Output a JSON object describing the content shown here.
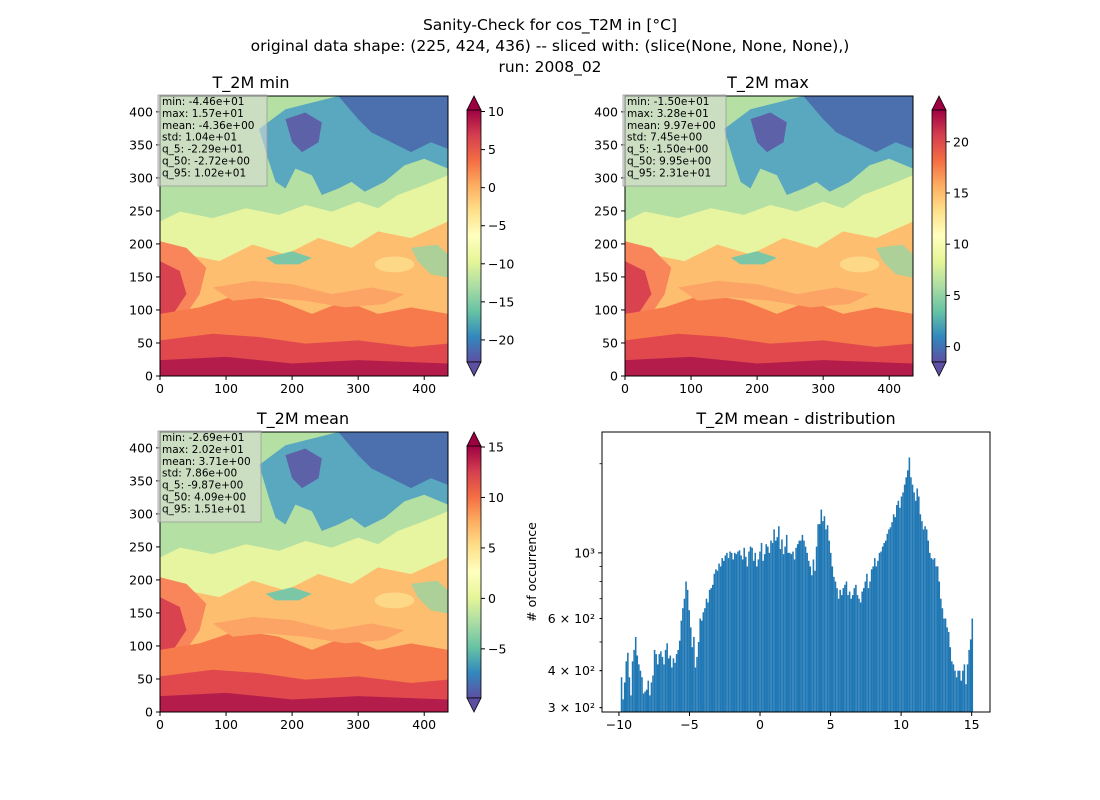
{
  "figure": {
    "suptitle": [
      "Sanity-Check for cos_T2M in [°C]",
      "original data shape: (225, 424, 436) -- sliced with: (slice(None, None, None),)",
      "run: 2008_02"
    ]
  },
  "chart_data": [
    {
      "type": "heatmap",
      "title": "T_2M min",
      "colormap": "Spectral_r",
      "x_ticks": [
        0,
        100,
        200,
        300,
        400
      ],
      "y_ticks": [
        0,
        50,
        100,
        150,
        200,
        250,
        300,
        350,
        400
      ],
      "xlim": [
        0,
        436
      ],
      "ylim": [
        0,
        424
      ],
      "colorbar": {
        "ticks": [
          "10",
          "5",
          "0",
          "−5",
          "−10",
          "−15",
          "−20"
        ],
        "tick_values": [
          10,
          5,
          0,
          -5,
          -10,
          -15,
          -20
        ],
        "range": [
          -22.9,
          10.2
        ],
        "extend": "both"
      },
      "stats": [
        "min: -4.46e+01",
        "max: 1.57e+01",
        "mean: -4.36e+00",
        "std: 1.04e+01",
        "q_5: -2.29e+01",
        "q_50: -2.72e+00",
        "q_95: 1.02e+01"
      ]
    },
    {
      "type": "heatmap",
      "title": "T_2M max",
      "colormap": "Spectral_r",
      "x_ticks": [
        0,
        100,
        200,
        300,
        400
      ],
      "y_ticks": [
        0,
        50,
        100,
        150,
        200,
        250,
        300,
        350,
        400
      ],
      "xlim": [
        0,
        436
      ],
      "ylim": [
        0,
        424
      ],
      "colorbar": {
        "ticks": [
          "20",
          "15",
          "10",
          "5",
          "0"
        ],
        "tick_values": [
          20,
          15,
          10,
          5,
          0
        ],
        "range": [
          -1.5,
          23.1
        ],
        "extend": "both"
      },
      "stats": [
        "min: -1.50e+01",
        "max: 3.28e+01",
        "mean: 9.97e+00",
        "std: 7.45e+00",
        "q_5: -1.50e+00",
        "q_50: 9.95e+00",
        "q_95: 2.31e+01"
      ]
    },
    {
      "type": "heatmap",
      "title": "T_2M mean",
      "colormap": "Spectral_r",
      "x_ticks": [
        0,
        100,
        200,
        300,
        400
      ],
      "y_ticks": [
        0,
        50,
        100,
        150,
        200,
        250,
        300,
        350,
        400
      ],
      "xlim": [
        0,
        436
      ],
      "ylim": [
        0,
        424
      ],
      "colorbar": {
        "ticks": [
          "15",
          "10",
          "5",
          "0",
          "−5"
        ],
        "tick_values": [
          15,
          10,
          5,
          0,
          -5
        ],
        "range": [
          -9.87,
          15.1
        ],
        "extend": "both"
      },
      "stats": [
        "min: -2.69e+01",
        "max: 2.02e+01",
        "mean: 3.71e+00",
        "std: 7.86e+00",
        "q_5: -9.87e+00",
        "q_50: 4.09e+00",
        "q_95: 1.51e+01"
      ]
    },
    {
      "type": "bar",
      "title": "T_2M mean - distribution",
      "ylabel": "# of occurrence",
      "y_scale": "log",
      "x_ticks": [
        "−10",
        "−5",
        "0",
        "5",
        "10",
        "15"
      ],
      "x_tick_values": [
        -10,
        -5,
        0,
        5,
        10,
        15
      ],
      "xlim": [
        -11.2,
        16.3
      ],
      "ylim": [
        290,
        2560
      ],
      "y_ticks": [
        "3 × 10²",
        "4 × 10²",
        "6 × 10²",
        "10³"
      ],
      "y_tick_values": [
        300,
        400,
        600,
        1000
      ],
      "bin_range": [
        -9.87,
        15.1
      ],
      "counts": [
        380,
        320,
        365,
        430,
        460,
        380,
        330,
        430,
        470,
        520,
        450,
        420,
        400,
        380,
        335,
        340,
        345,
        370,
        330,
        365,
        385,
        470,
        455,
        420,
        455,
        465,
        445,
        420,
        470,
        495,
        440,
        450,
        410,
        440,
        425,
        455,
        470,
        505,
        590,
        650,
        700,
        800,
        750,
        640,
        560,
        480,
        520,
        410,
        445,
        500,
        600,
        590,
        630,
        650,
        700,
        680,
        750,
        760,
        780,
        850,
        880,
        870,
        920,
        900,
        960,
        940,
        980,
        1000,
        960,
        1010,
        1000,
        950,
        1000,
        990,
        1010,
        1020,
        980,
        950,
        1040,
        970,
        900,
        1010,
        1050,
        1040,
        940,
        1000,
        900,
        950,
        1010,
        1080,
        940,
        990,
        1070,
        1050,
        1000,
        1100,
        1080,
        1200,
        1100,
        1130,
        1230,
        1030,
        1110,
        990,
        1050,
        1150,
        1000,
        1000,
        990,
        1010,
        950,
        1040,
        1070,
        1100,
        1100,
        1150,
        1100,
        1050,
        1000,
        940,
        900,
        840,
        950,
        870,
        1050,
        1250,
        1250,
        1400,
        1280,
        1330,
        1200,
        1240,
        1100,
        1000,
        900,
        830,
        800,
        760,
        700,
        750,
        720,
        760,
        780,
        800,
        720,
        740,
        700,
        720,
        760,
        780,
        720,
        700,
        680,
        740,
        760,
        800,
        850,
        760,
        800,
        880,
        900,
        960,
        900,
        940,
        1000,
        1010,
        1050,
        1080,
        1100,
        1160,
        1200,
        1220,
        1270,
        1350,
        1320,
        1450,
        1500,
        1420,
        1550,
        1600,
        1700,
        1800,
        1900,
        2100,
        1800,
        1700,
        1600,
        1500,
        1650,
        1550,
        1350,
        1280,
        1200,
        1230,
        1200,
        1100,
        1000,
        960,
        950,
        960,
        900,
        900,
        800,
        700,
        650,
        600,
        600,
        560,
        540,
        480,
        430,
        420,
        400,
        380,
        400,
        400,
        370,
        400,
        420,
        360,
        420,
        470,
        510,
        600
      ]
    }
  ]
}
